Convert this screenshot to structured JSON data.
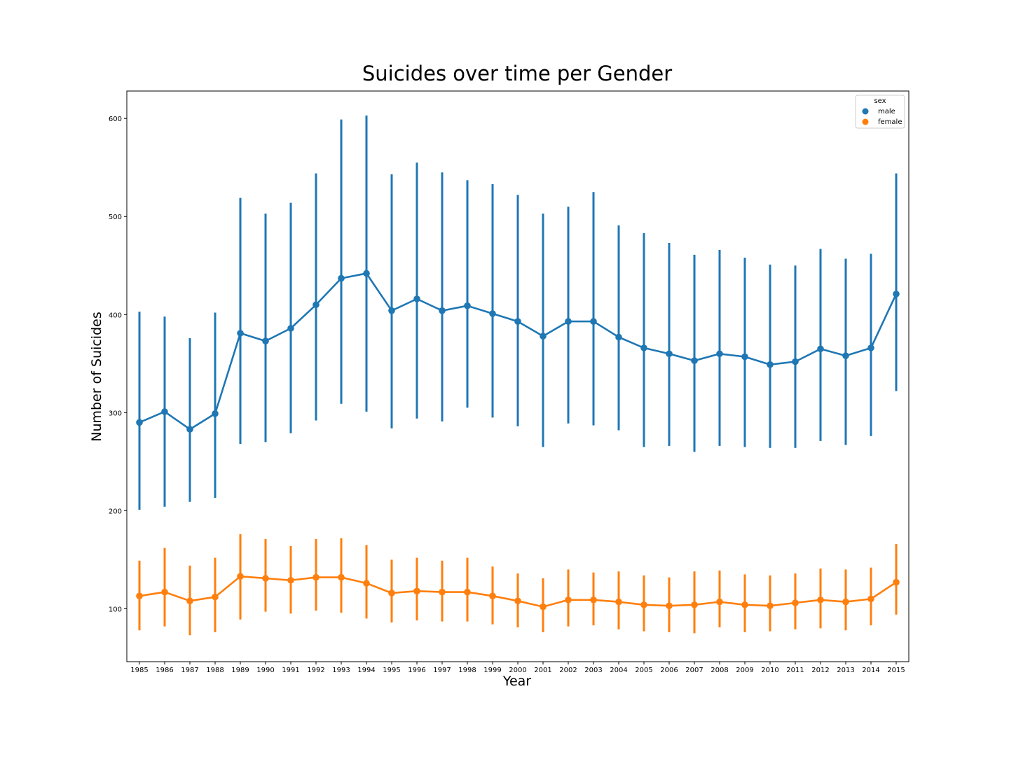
{
  "chart_data": {
    "type": "line",
    "title": "Suicides over time per Gender",
    "xlabel": "Year",
    "ylabel": "Number of Suicides",
    "categories": [
      "1985",
      "1986",
      "1987",
      "1988",
      "1989",
      "1990",
      "1991",
      "1992",
      "1993",
      "1994",
      "1995",
      "1996",
      "1997",
      "1998",
      "1999",
      "2000",
      "2001",
      "2002",
      "2003",
      "2004",
      "2005",
      "2006",
      "2007",
      "2008",
      "2009",
      "2010",
      "2011",
      "2012",
      "2013",
      "2014",
      "2015"
    ],
    "ylim": [
      46,
      628
    ],
    "yticks": [
      100,
      200,
      300,
      400,
      500,
      600
    ],
    "legend": {
      "title": "sex",
      "placement": "top-right"
    },
    "series": [
      {
        "name": "male",
        "color": "#1f77b4",
        "values": [
          290,
          301,
          283,
          299,
          381,
          373,
          386,
          410,
          437,
          442,
          404,
          416,
          404,
          409,
          401,
          393,
          378,
          393,
          393,
          377,
          366,
          360,
          353,
          360,
          357,
          349,
          352,
          365,
          358,
          366,
          421
        ],
        "ci_low": [
          201,
          204,
          209,
          213,
          268,
          270,
          279,
          292,
          309,
          301,
          284,
          294,
          291,
          305,
          295,
          286,
          265,
          289,
          287,
          282,
          265,
          266,
          260,
          266,
          265,
          264,
          264,
          271,
          267,
          276,
          322
        ],
        "ci_high": [
          403,
          398,
          376,
          402,
          519,
          503,
          514,
          544,
          599,
          603,
          543,
          555,
          545,
          537,
          533,
          522,
          503,
          510,
          525,
          491,
          483,
          473,
          461,
          466,
          458,
          451,
          450,
          467,
          457,
          462,
          544
        ]
      },
      {
        "name": "female",
        "color": "#ff7f0e",
        "values": [
          113,
          117,
          108,
          112,
          133,
          131,
          129,
          132,
          132,
          126,
          116,
          118,
          117,
          117,
          113,
          108,
          102,
          109,
          109,
          107,
          104,
          103,
          104,
          107,
          104,
          103,
          106,
          109,
          107,
          110,
          127
        ],
        "ci_low": [
          78,
          82,
          73,
          76,
          89,
          97,
          95,
          98,
          96,
          90,
          86,
          88,
          87,
          87,
          84,
          81,
          76,
          82,
          83,
          79,
          77,
          76,
          75,
          81,
          76,
          77,
          79,
          80,
          78,
          83,
          94
        ],
        "ci_high": [
          149,
          162,
          144,
          152,
          176,
          171,
          164,
          171,
          172,
          165,
          150,
          152,
          149,
          152,
          143,
          136,
          131,
          140,
          137,
          138,
          134,
          132,
          138,
          139,
          135,
          134,
          136,
          141,
          140,
          142,
          166
        ]
      }
    ]
  }
}
